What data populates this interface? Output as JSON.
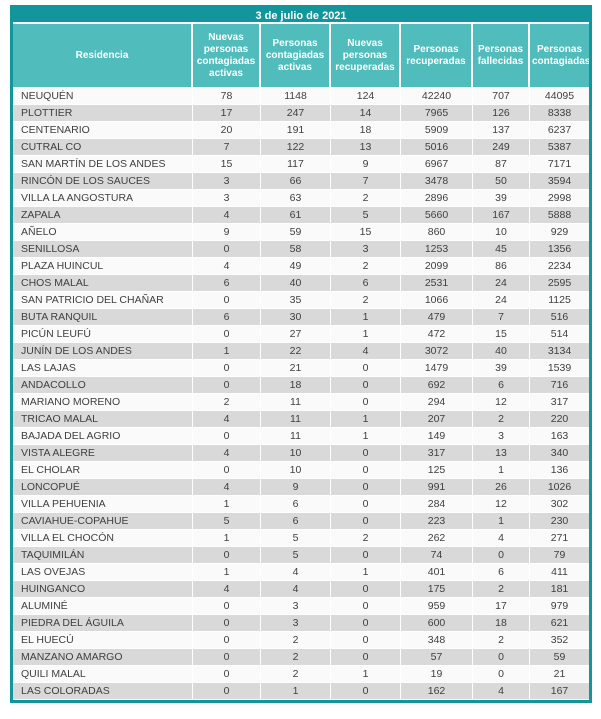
{
  "title": "3 de julio de 2021",
  "colors": {
    "title_bar": "#12969B",
    "header_bg": "#50BCBC",
    "row_base": "#FAFAFA",
    "row_alt": "#D9D9D9",
    "text": "#3F3F3F",
    "header_text": "#FFFFFF"
  },
  "chart_data": {
    "type": "table",
    "title": "3 de julio de 2021",
    "columns": [
      "Residencia",
      "Nuevas personas contagiadas activas",
      "Personas contagiadas activas",
      "Nuevas personas recuperadas",
      "Personas recuperadas",
      "Personas fallecidas",
      "Personas contagiadas"
    ],
    "rows": [
      [
        "NEUQUÉN",
        78,
        1148,
        124,
        42240,
        707,
        44095
      ],
      [
        "PLOTTIER",
        17,
        247,
        14,
        7965,
        126,
        8338
      ],
      [
        "CENTENARIO",
        20,
        191,
        18,
        5909,
        137,
        6237
      ],
      [
        "CUTRAL CO",
        7,
        122,
        13,
        5016,
        249,
        5387
      ],
      [
        "SAN MARTÍN DE LOS ANDES",
        15,
        117,
        9,
        6967,
        87,
        7171
      ],
      [
        "RINCÓN DE LOS SAUCES",
        3,
        66,
        7,
        3478,
        50,
        3594
      ],
      [
        "VILLA LA ANGOSTURA",
        3,
        63,
        2,
        2896,
        39,
        2998
      ],
      [
        "ZAPALA",
        4,
        61,
        5,
        5660,
        167,
        5888
      ],
      [
        "AÑELO",
        9,
        59,
        15,
        860,
        10,
        929
      ],
      [
        "SENILLOSA",
        0,
        58,
        3,
        1253,
        45,
        1356
      ],
      [
        "PLAZA HUINCUL",
        4,
        49,
        2,
        2099,
        86,
        2234
      ],
      [
        "CHOS MALAL",
        6,
        40,
        6,
        2531,
        24,
        2595
      ],
      [
        "SAN PATRICIO DEL CHAÑAR",
        0,
        35,
        2,
        1066,
        24,
        1125
      ],
      [
        "BUTA RANQUIL",
        6,
        30,
        1,
        479,
        7,
        516
      ],
      [
        "PICÚN LEUFÚ",
        0,
        27,
        1,
        472,
        15,
        514
      ],
      [
        "JUNÍN DE LOS ANDES",
        1,
        22,
        4,
        3072,
        40,
        3134
      ],
      [
        "LAS LAJAS",
        0,
        21,
        0,
        1479,
        39,
        1539
      ],
      [
        "ANDACOLLO",
        0,
        18,
        0,
        692,
        6,
        716
      ],
      [
        "MARIANO MORENO",
        2,
        11,
        0,
        294,
        12,
        317
      ],
      [
        "TRICAO MALAL",
        4,
        11,
        1,
        207,
        2,
        220
      ],
      [
        "BAJADA DEL AGRIO",
        0,
        11,
        1,
        149,
        3,
        163
      ],
      [
        "VISTA ALEGRE",
        4,
        10,
        0,
        317,
        13,
        340
      ],
      [
        "EL CHOLAR",
        0,
        10,
        0,
        125,
        1,
        136
      ],
      [
        "LONCOPUÉ",
        4,
        9,
        0,
        991,
        26,
        1026
      ],
      [
        "VILLA PEHUENIA",
        1,
        6,
        0,
        284,
        12,
        302
      ],
      [
        "CAVIAHUE-COPAHUE",
        5,
        6,
        0,
        223,
        1,
        230
      ],
      [
        "VILLA EL CHOCÓN",
        1,
        5,
        2,
        262,
        4,
        271
      ],
      [
        "TAQUIMILÁN",
        0,
        5,
        0,
        74,
        0,
        79
      ],
      [
        "LAS OVEJAS",
        1,
        4,
        1,
        401,
        6,
        411
      ],
      [
        "HUINGANCO",
        4,
        4,
        0,
        175,
        2,
        181
      ],
      [
        "ALUMINÉ",
        0,
        3,
        0,
        959,
        17,
        979
      ],
      [
        "PIEDRA DEL ÁGUILA",
        0,
        3,
        0,
        600,
        18,
        621
      ],
      [
        "EL HUECÚ",
        0,
        2,
        0,
        348,
        2,
        352
      ],
      [
        "MANZANO AMARGO",
        0,
        2,
        0,
        57,
        0,
        59
      ],
      [
        "QUILI MALAL",
        0,
        2,
        1,
        19,
        0,
        21
      ],
      [
        "LAS COLORADAS",
        0,
        1,
        0,
        162,
        4,
        167
      ]
    ]
  }
}
